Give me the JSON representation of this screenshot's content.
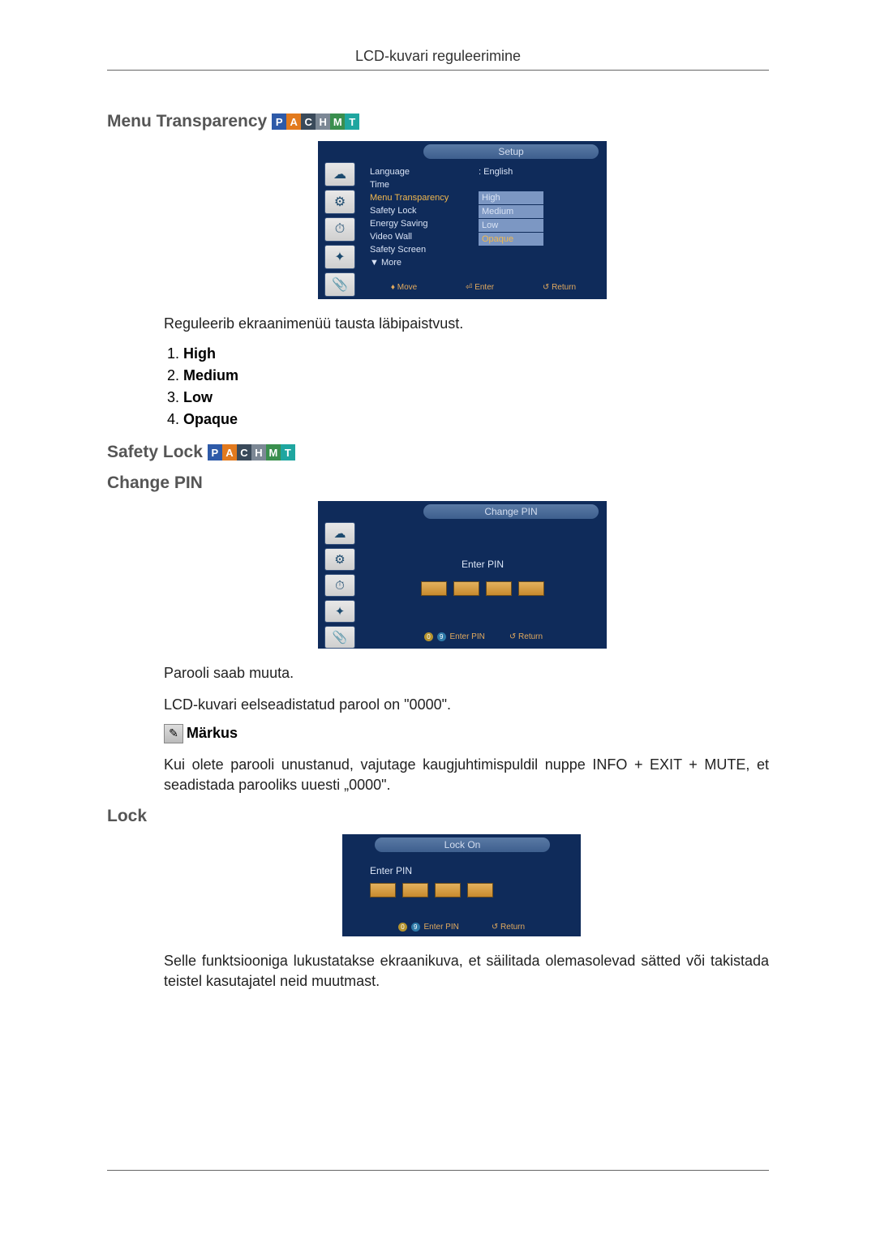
{
  "header": {
    "title": "LCD-kuvari reguleerimine"
  },
  "pachmt": {
    "letters": [
      "P",
      "A",
      "C",
      "H",
      "M",
      "T"
    ],
    "colors": [
      "#2e5aa8",
      "#e27a1e",
      "#3a4a5a",
      "#7c8895",
      "#3a8f4e",
      "#1fa6a0"
    ]
  },
  "section_menu_transparency": {
    "title": "Menu Transparency",
    "desc": "Reguleerib ekraanimenüü tausta läbipaistvust.",
    "options": [
      "High",
      "Medium",
      "Low",
      "Opaque"
    ]
  },
  "osd_setup": {
    "tab": "Setup",
    "menu_items": [
      "Language",
      "Time",
      "Menu Transparency",
      "Safety Lock",
      "Energy Saving",
      "Video Wall",
      "Safety Screen",
      "▼ More"
    ],
    "lang_value": ": English",
    "trans_values": [
      "High",
      "Medium",
      "Low",
      "Opaque"
    ],
    "footer": {
      "move": "Move",
      "enter": "Enter",
      "return": "Return"
    },
    "colors": {
      "bg": "#0f2b5a",
      "tab_grad_top": "#5a7aa5",
      "tab_grad_bot": "#3e5f8e",
      "text": "#d9e3f5",
      "highlight": "#f2b84e",
      "selection_bg": "#7c97c3",
      "footer_text": "#e2aa5e"
    }
  },
  "section_safety_lock": {
    "title": "Safety Lock"
  },
  "section_change_pin": {
    "title": "Change PIN",
    "desc1": "Parooli saab muuta.",
    "desc2": "LCD-kuvari eelseadistatud parool on \"0000\".",
    "note_label": "Märkus",
    "note_text": "Kui olete parooli unustanud, vajutage kaugjuhtimispuldil nuppe INFO + EXIT + MUTE, et seadistada parooliks uuesti „0000\"."
  },
  "osd_change_pin": {
    "tab": "Change PIN",
    "label": "Enter PIN",
    "footer": {
      "enter_pin": "Enter PIN",
      "return": "Return"
    }
  },
  "section_lock": {
    "title": "Lock",
    "desc": "Selle funktsiooniga lukustatakse ekraanikuva, et säilitada olemasolevad sätted või takistada teistel kasutajatel neid muutmast."
  },
  "osd_lock": {
    "tab": "Lock On",
    "label": "Enter PIN",
    "footer": {
      "enter_pin": "Enter PIN",
      "return": "Return"
    }
  },
  "sidebar_icons": [
    "☁",
    "⚙",
    "⏱",
    "✦",
    "📎"
  ],
  "footer_circle_colors": {
    "zero": "#b5932e",
    "nine": "#2e7aa8",
    "return": "#3a4a5a"
  }
}
